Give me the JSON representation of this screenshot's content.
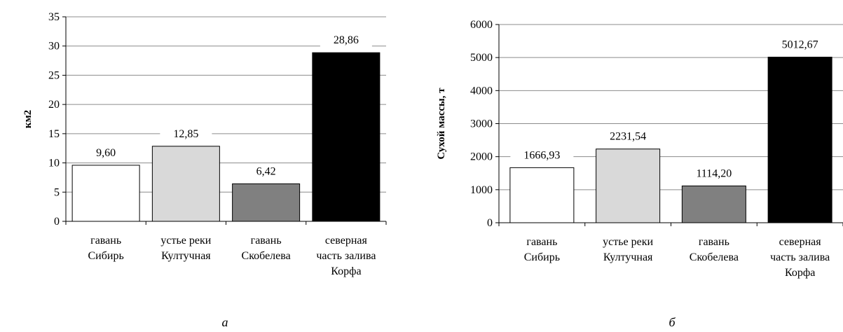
{
  "chart_data": [
    {
      "type": "bar",
      "panel_label": "а",
      "ylabel": "км2",
      "xlabel": "",
      "ylim": [
        0,
        35
      ],
      "yticks": [
        "0",
        "5",
        "10",
        "15",
        "20",
        "25",
        "30",
        "35"
      ],
      "grid": true,
      "categories": [
        [
          "гавань",
          "Сибирь"
        ],
        [
          "устье реки",
          "Култучная"
        ],
        [
          "гавань",
          "Скобелева"
        ],
        [
          "северная",
          "часть залива",
          "Корфа"
        ]
      ],
      "values": [
        9.6,
        12.85,
        6.42,
        28.86
      ],
      "value_labels": [
        "9,60",
        "12,85",
        "6,42",
        "28,86"
      ],
      "bar_colors": [
        "#ffffff",
        "#d9d9d9",
        "#808080",
        "#000000"
      ]
    },
    {
      "type": "bar",
      "panel_label": "б",
      "ylabel": "Сухой массы, т",
      "xlabel": "",
      "ylim": [
        0,
        6000
      ],
      "yticks": [
        "0",
        "1000",
        "2000",
        "3000",
        "4000",
        "5000",
        "6000"
      ],
      "grid": true,
      "categories": [
        [
          "гавань",
          "Сибирь"
        ],
        [
          "устье реки",
          "Култучная"
        ],
        [
          "гавань",
          "Скобелева"
        ],
        [
          "северная",
          "часть залива",
          "Корфа"
        ]
      ],
      "values": [
        1666.93,
        2231.54,
        1114.2,
        5012.67
      ],
      "value_labels": [
        "1666,93",
        "2231,54",
        "1114,20",
        "5012,67"
      ],
      "bar_colors": [
        "#ffffff",
        "#d9d9d9",
        "#808080",
        "#000000"
      ]
    }
  ]
}
